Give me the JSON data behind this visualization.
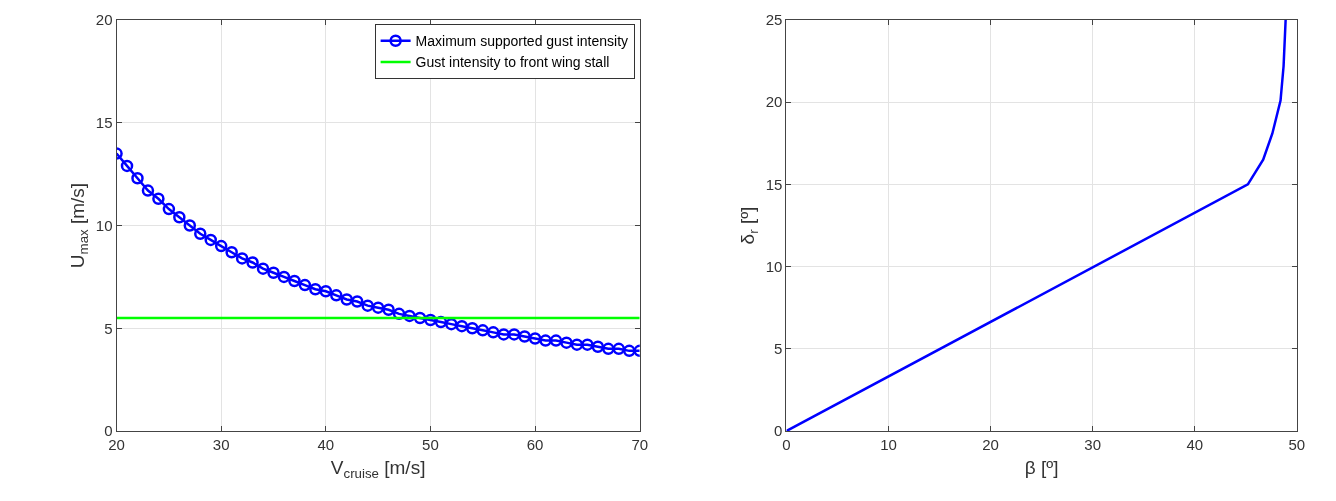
{
  "chart_data": [
    {
      "type": "line",
      "xlabel": "V$_{cruise}$ [m/s]",
      "ylabel": "U$_{max}$ [m/s]",
      "xlim": [
        20,
        70
      ],
      "ylim": [
        0,
        20
      ],
      "xticks": [
        20,
        30,
        40,
        50,
        60,
        70
      ],
      "yticks": [
        0,
        5,
        10,
        15,
        20
      ],
      "grid": true,
      "legend": "top right",
      "line_style": "solid",
      "x": [
        20,
        21,
        22,
        23,
        24,
        25,
        26,
        27,
        28,
        29,
        30,
        31,
        32,
        33,
        34,
        35,
        36,
        37,
        38,
        39,
        40,
        41,
        42,
        43,
        44,
        45,
        46,
        47,
        48,
        49,
        50,
        51,
        52,
        53,
        54,
        55,
        56,
        57,
        58,
        59,
        60,
        61,
        62,
        63,
        64,
        65,
        66,
        67,
        68,
        69,
        70
      ],
      "series": [
        {
          "name": "Maximum supported gust intensity",
          "color": "#0000ff",
          "marker": "circle",
          "values": [
            13.5,
            12.9,
            12.3,
            11.7,
            11.3,
            10.8,
            10.4,
            10.0,
            9.6,
            9.3,
            9.0,
            8.7,
            8.4,
            8.2,
            7.9,
            7.7,
            7.5,
            7.3,
            7.1,
            6.9,
            6.8,
            6.6,
            6.4,
            6.3,
            6.1,
            6.0,
            5.9,
            5.7,
            5.6,
            5.5,
            5.4,
            5.3,
            5.2,
            5.1,
            5.0,
            4.9,
            4.8,
            4.7,
            4.7,
            4.6,
            4.5,
            4.4,
            4.4,
            4.3,
            4.2,
            4.2,
            4.1,
            4.0,
            4.0,
            3.9,
            3.9
          ]
        },
        {
          "name": "Gust intensity to front wing stall",
          "color": "#00ff00",
          "marker": "none",
          "x": [
            20,
            70
          ],
          "values": [
            5.5,
            5.5
          ]
        }
      ]
    },
    {
      "type": "line",
      "xlabel": "β [º]",
      "ylabel": "δ$_{r}$ [º]",
      "xlim": [
        0,
        50
      ],
      "ylim": [
        0,
        25
      ],
      "xticks": [
        0,
        10,
        20,
        30,
        40,
        50
      ],
      "yticks": [
        0,
        5,
        10,
        15,
        20,
        25
      ],
      "grid": true,
      "legend": false,
      "line_style": "solid",
      "marker": "none",
      "series": [
        {
          "color": "#0000ff",
          "x": [
            0,
            45.2,
            46.7,
            47.6,
            48.4,
            48.7,
            48.9
          ],
          "values": [
            0,
            15.0,
            16.5,
            18.1,
            20.1,
            22.2,
            25.0
          ]
        }
      ]
    }
  ]
}
